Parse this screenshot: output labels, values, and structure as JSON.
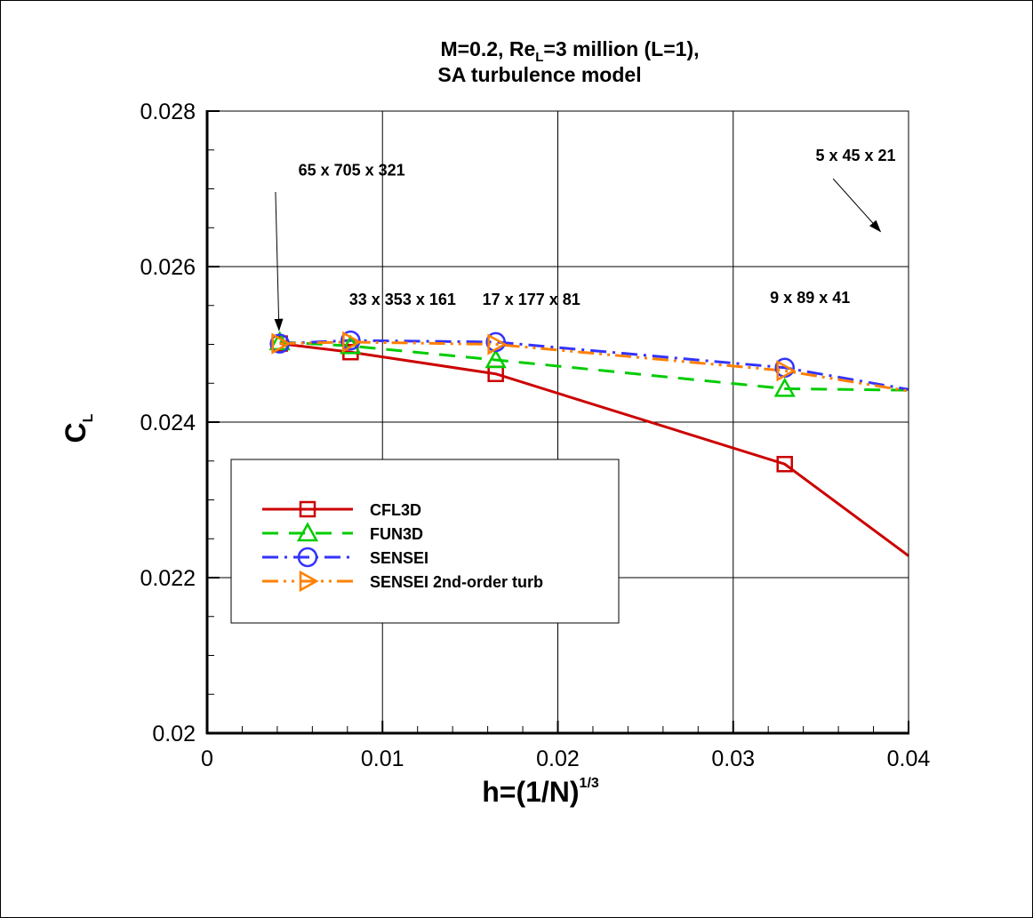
{
  "chart_data": {
    "type": "line",
    "title_line1_pre": "M=0.2, Re",
    "title_line1_sub": "L",
    "title_line1_post": "=3 million (L=1),",
    "title_line2": "SA turbulence model",
    "xlabel": "h=(1/N)",
    "xlabel_sup": "1/3",
    "ylabel": "C",
    "ylabel_sub": "L",
    "xlim": [
      0,
      0.04
    ],
    "ylim": [
      0.02,
      0.028
    ],
    "x_ticks": [
      {
        "v": 0,
        "label": "0"
      },
      {
        "v": 0.01,
        "label": "0.01"
      },
      {
        "v": 0.02,
        "label": "0.02"
      },
      {
        "v": 0.03,
        "label": "0.03"
      },
      {
        "v": 0.04,
        "label": "0.04"
      }
    ],
    "y_ticks": [
      {
        "v": 0.02,
        "label": "0.02"
      },
      {
        "v": 0.022,
        "label": "0.022"
      },
      {
        "v": 0.024,
        "label": "0.024"
      },
      {
        "v": 0.026,
        "label": "0.026"
      },
      {
        "v": 0.028,
        "label": "0.028"
      }
    ],
    "grid": true,
    "legend_position": "lower-left",
    "series": [
      {
        "name": "CFL3D",
        "color": "#cc0000",
        "marker": "square",
        "dash": "solid",
        "x": [
          0.00414,
          0.00818,
          0.01646,
          0.03294,
          0.04
        ],
        "y": [
          0.02501,
          0.0249,
          0.02462,
          0.02346,
          0.02228
        ]
      },
      {
        "name": "FUN3D",
        "color": "#00cc00",
        "marker": "triangle",
        "dash": "dashed",
        "x": [
          0.00414,
          0.00818,
          0.01646,
          0.03294,
          0.04
        ],
        "y": [
          0.02503,
          0.02498,
          0.0248,
          0.02443,
          0.02441
        ]
      },
      {
        "name": "SENSEI",
        "color": "#3333ff",
        "marker": "circle",
        "dash": "dashdot",
        "x": [
          0.00414,
          0.00818,
          0.01646,
          0.03294,
          0.04
        ],
        "y": [
          0.02501,
          0.02505,
          0.02503,
          0.0247,
          0.02442
        ]
      },
      {
        "name": "SENSEI 2nd-order turb",
        "color": "#ff8000",
        "marker": "triangle-right",
        "dash": "dashdotdot",
        "x": [
          0.00414,
          0.00818,
          0.01646,
          0.03294,
          0.04
        ],
        "y": [
          0.02501,
          0.02503,
          0.025,
          0.02466,
          0.0244
        ]
      }
    ],
    "annotations": [
      {
        "text": "65 x 705 x 321",
        "x": 0.0052,
        "y": 0.02717,
        "arrow_to": [
          0.0041,
          0.02518
        ],
        "arrow_from": [
          0.0039,
          0.02696
        ]
      },
      {
        "text": "33 x 353 x 161",
        "x": 0.0081,
        "y": 0.02551
      },
      {
        "text": "17 x 177 x 81",
        "x": 0.0157,
        "y": 0.02551
      },
      {
        "text": "9 x 89 x 41",
        "x": 0.0321,
        "y": 0.02553
      },
      {
        "text": "5 x 45 x 21",
        "x": 0.0347,
        "y": 0.02736,
        "arrow_to": [
          0.0384,
          0.02645
        ],
        "arrow_from": [
          0.0357,
          0.02713
        ]
      }
    ]
  }
}
